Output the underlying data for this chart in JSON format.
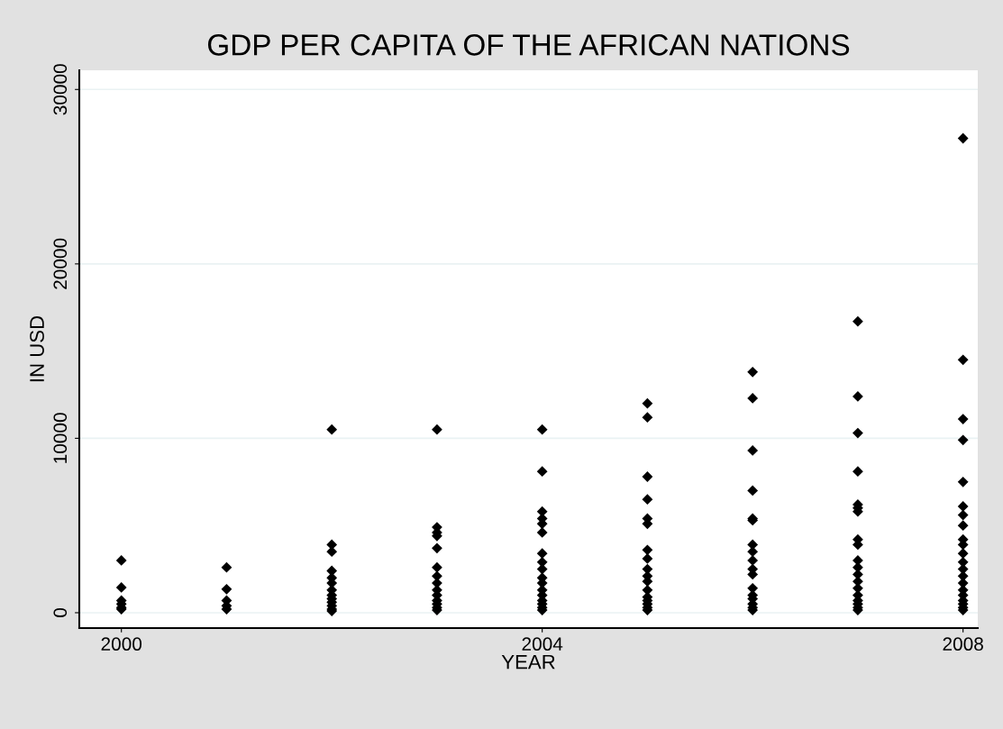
{
  "chart_data": {
    "type": "scatter",
    "title": "GDP PER CAPITA OF THE AFRICAN NATIONS",
    "xlabel": "YEAR",
    "ylabel": "IN USD",
    "series": [
      {
        "color": "#000000",
        "x": [
          2000,
          2000,
          2000,
          2000,
          2000,
          2000,
          2001,
          2001,
          2001,
          2001,
          2001,
          2002,
          2002,
          2002,
          2002,
          2002,
          2002,
          2002,
          2002,
          2002,
          2002,
          2002,
          2002,
          2002,
          2003,
          2003,
          2003,
          2003,
          2003,
          2003,
          2003,
          2003,
          2003,
          2003,
          2003,
          2003,
          2003,
          2003,
          2004,
          2004,
          2004,
          2004,
          2004,
          2004,
          2004,
          2004,
          2004,
          2004,
          2004,
          2004,
          2004,
          2004,
          2004,
          2004,
          2004,
          2005,
          2005,
          2005,
          2005,
          2005,
          2005,
          2005,
          2005,
          2005,
          2005,
          2005,
          2005,
          2005,
          2005,
          2005,
          2005,
          2005,
          2006,
          2006,
          2006,
          2006,
          2006,
          2006,
          2006,
          2006,
          2006,
          2006,
          2006,
          2006,
          2006,
          2006,
          2006,
          2006,
          2006,
          2007,
          2007,
          2007,
          2007,
          2007,
          2007,
          2007,
          2007,
          2007,
          2007,
          2007,
          2007,
          2007,
          2007,
          2007,
          2007,
          2007,
          2007,
          2007,
          2008,
          2008,
          2008,
          2008,
          2008,
          2008,
          2008,
          2008,
          2008,
          2008,
          2008,
          2008,
          2008,
          2008,
          2008,
          2008,
          2008,
          2008,
          2008,
          2008,
          2008
        ],
        "values": [
          3000,
          1450,
          700,
          500,
          300,
          200,
          2600,
          1350,
          700,
          400,
          200,
          10500,
          3900,
          3500,
          2400,
          2000,
          1700,
          1300,
          1000,
          800,
          600,
          400,
          200,
          100,
          10500,
          4900,
          4600,
          4400,
          3700,
          2600,
          2100,
          1700,
          1300,
          1000,
          700,
          500,
          300,
          150,
          10500,
          8100,
          5800,
          5400,
          5100,
          4600,
          3400,
          2900,
          2500,
          2000,
          1700,
          1300,
          1000,
          700,
          500,
          300,
          150,
          12000,
          11200,
          7800,
          6500,
          5400,
          5100,
          3600,
          3100,
          2500,
          2100,
          1800,
          1300,
          900,
          700,
          500,
          300,
          150,
          13800,
          12300,
          9300,
          7000,
          5400,
          5300,
          3900,
          3500,
          3000,
          2500,
          2200,
          1400,
          1000,
          800,
          500,
          300,
          150,
          16700,
          12400,
          10300,
          8100,
          6200,
          6000,
          5800,
          4200,
          3900,
          3000,
          2600,
          2200,
          1800,
          1400,
          1000,
          700,
          500,
          300,
          150,
          27200,
          14500,
          11100,
          9900,
          7500,
          6100,
          5600,
          5000,
          4200,
          3900,
          3400,
          2900,
          2500,
          2100,
          1700,
          1300,
          1000,
          700,
          500,
          300,
          150
        ]
      }
    ],
    "marker": "diamond",
    "grid": "y",
    "xlim": [
      1999.6,
      2008.14
    ],
    "xticks": [
      2000,
      2004,
      2008
    ],
    "ylim": [
      -880,
      31100
    ],
    "yticks": [
      0,
      10000,
      20000,
      30000
    ]
  }
}
